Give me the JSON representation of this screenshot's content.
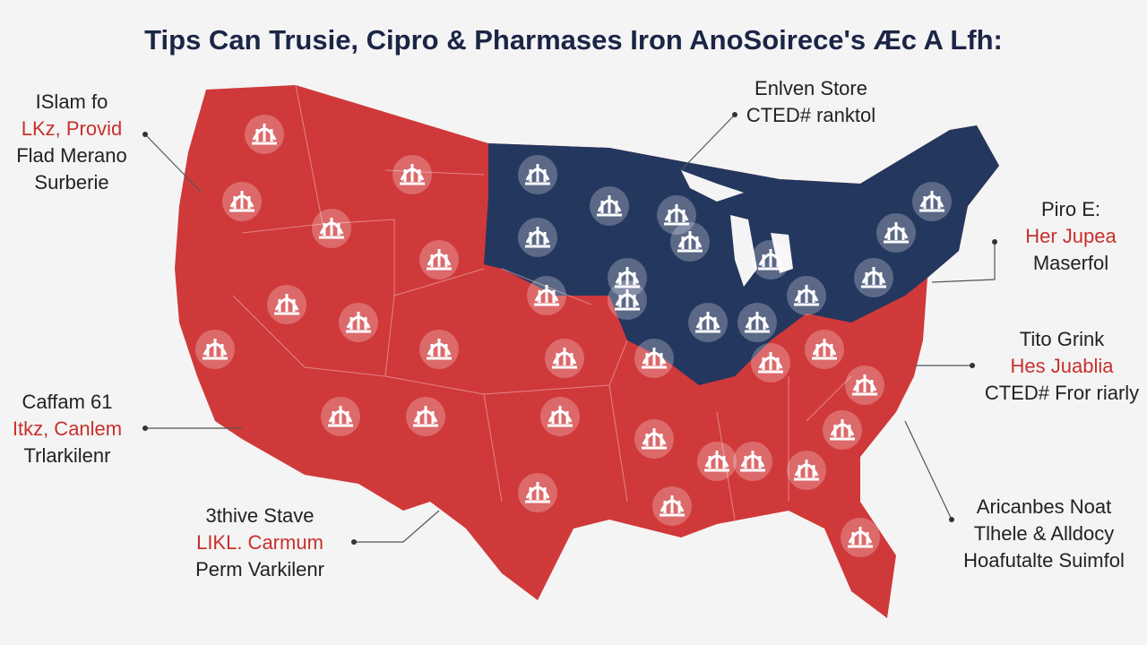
{
  "title": "Tips Can Trusie, Cipro & Pharmases Iron AnoSoirece's Æc A Lfh:",
  "callouts": [
    {
      "lines": [
        {
          "text": "ISlam fo",
          "color": "#222222"
        },
        {
          "text": "LKz, Provid",
          "color": "#c8302c"
        },
        {
          "text": "Flad Merano",
          "color": "#222222"
        },
        {
          "text": "Surberie",
          "color": "#222222"
        }
      ]
    },
    {
      "lines": [
        {
          "text": "Enlven Store",
          "color": "#222222"
        },
        {
          "text": "CTED# ranktol",
          "color": "#222222"
        }
      ]
    },
    {
      "lines": [
        {
          "text": "Piro E:",
          "color": "#222222"
        },
        {
          "text": "Her Jupea",
          "color": "#c8302c"
        },
        {
          "text": "Maserfol",
          "color": "#222222"
        }
      ]
    },
    {
      "lines": [
        {
          "text": "Tito Grink",
          "color": "#222222"
        },
        {
          "text": "Hes Juablia",
          "color": "#c8302c"
        },
        {
          "text": "CTED# Fror riarly",
          "color": "#222222"
        }
      ]
    },
    {
      "lines": [
        {
          "text": "Aricanbes Noat",
          "color": "#222222"
        },
        {
          "text": "Tlhele & Alldocy",
          "color": "#222222"
        },
        {
          "text": "Hoafutalte Suimfol",
          "color": "#222222"
        }
      ]
    },
    {
      "lines": [
        {
          "text": "Caffam 61",
          "color": "#222222"
        },
        {
          "text": "Itkz, Canlem",
          "color": "#c8302c"
        },
        {
          "text": "Trlarkilenr",
          "color": "#222222"
        }
      ]
    },
    {
      "lines": [
        {
          "text": "3thive Stave",
          "color": "#222222"
        },
        {
          "text": "LIKL. Carmum",
          "color": "#c8302c"
        },
        {
          "text": "Perm Varkilenr",
          "color": "#222222"
        }
      ]
    }
  ]
}
